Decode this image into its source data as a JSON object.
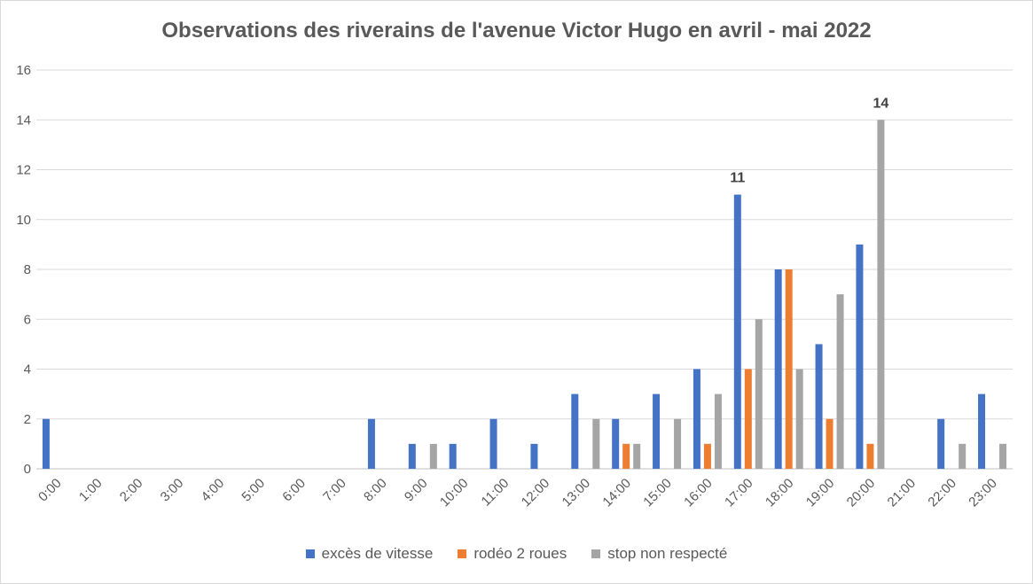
{
  "chart_data": {
    "type": "bar",
    "title": "Observations des riverains de l'avenue Victor Hugo en avril - mai 2022",
    "categories": [
      "0:00",
      "1:00",
      "2:00",
      "3:00",
      "4:00",
      "5:00",
      "6:00",
      "7:00",
      "8:00",
      "9:00",
      "10:00",
      "11:00",
      "12:00",
      "13:00",
      "14:00",
      "15:00",
      "16:00",
      "17:00",
      "18:00",
      "19:00",
      "20:00",
      "21:00",
      "22:00",
      "23:00"
    ],
    "series": [
      {
        "name": "excès de vitesse",
        "color": "#4472c4",
        "values": [
          2,
          0,
          0,
          0,
          0,
          0,
          0,
          0,
          2,
          1,
          1,
          2,
          1,
          3,
          2,
          3,
          4,
          11,
          8,
          5,
          9,
          0,
          2,
          3
        ]
      },
      {
        "name": "rodéo 2 roues",
        "color": "#ed7d31",
        "values": [
          0,
          0,
          0,
          0,
          0,
          0,
          0,
          0,
          0,
          0,
          0,
          0,
          0,
          0,
          1,
          0,
          1,
          4,
          8,
          2,
          1,
          0,
          0,
          0
        ]
      },
      {
        "name": "stop non respecté",
        "color": "#a5a5a5",
        "values": [
          0,
          0,
          0,
          0,
          0,
          0,
          0,
          0,
          0,
          1,
          0,
          0,
          0,
          2,
          1,
          2,
          3,
          6,
          4,
          7,
          14,
          0,
          1,
          1
        ]
      }
    ],
    "ylim": [
      0,
      16
    ],
    "yticks": [
      0,
      2,
      4,
      6,
      8,
      10,
      12,
      14,
      16
    ],
    "data_labels": [
      {
        "category": "17:00",
        "series": "excès de vitesse",
        "text": "11"
      },
      {
        "category": "20:00",
        "series": "stop non respecté",
        "text": "14"
      }
    ],
    "grid": true,
    "legend_position": "bottom"
  }
}
